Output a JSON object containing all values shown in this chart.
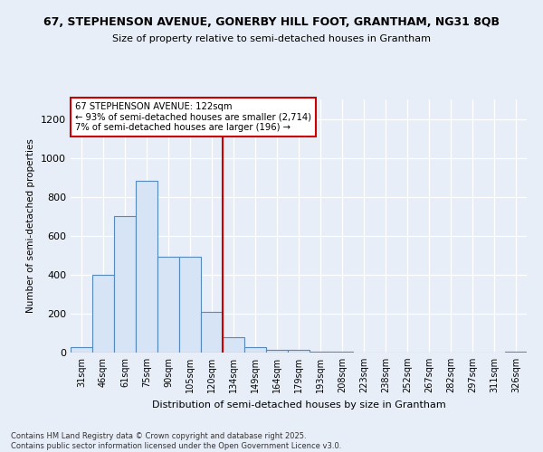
{
  "title_line1": "67, STEPHENSON AVENUE, GONERBY HILL FOOT, GRANTHAM, NG31 8QB",
  "title_line2": "Size of property relative to semi-detached houses in Grantham",
  "xlabel": "Distribution of semi-detached houses by size in Grantham",
  "ylabel": "Number of semi-detached properties",
  "bin_labels": [
    "31sqm",
    "46sqm",
    "61sqm",
    "75sqm",
    "90sqm",
    "105sqm",
    "120sqm",
    "134sqm",
    "149sqm",
    "164sqm",
    "179sqm",
    "193sqm",
    "208sqm",
    "223sqm",
    "238sqm",
    "252sqm",
    "267sqm",
    "282sqm",
    "297sqm",
    "311sqm",
    "326sqm"
  ],
  "bar_heights": [
    30,
    400,
    700,
    880,
    490,
    490,
    210,
    80,
    30,
    15,
    15,
    5,
    5,
    2,
    2,
    2,
    1,
    1,
    1,
    1,
    5
  ],
  "bar_color": "#d6e4f5",
  "bar_edge_color": "#5588bb",
  "vline_x_label": "120sqm",
  "vline_color": "#cc0000",
  "annotation_text": "67 STEPHENSON AVENUE: 122sqm\n← 93% of semi-detached houses are smaller (2,714)\n7% of semi-detached houses are larger (196) →",
  "annotation_box_color": "#cc0000",
  "ylim": [
    0,
    1300
  ],
  "yticks": [
    0,
    200,
    400,
    600,
    800,
    1000,
    1200
  ],
  "footer_text": "Contains HM Land Registry data © Crown copyright and database right 2025.\nContains public sector information licensed under the Open Government Licence v3.0.",
  "background_color": "#e8eef8",
  "plot_background": "#e8eef8"
}
